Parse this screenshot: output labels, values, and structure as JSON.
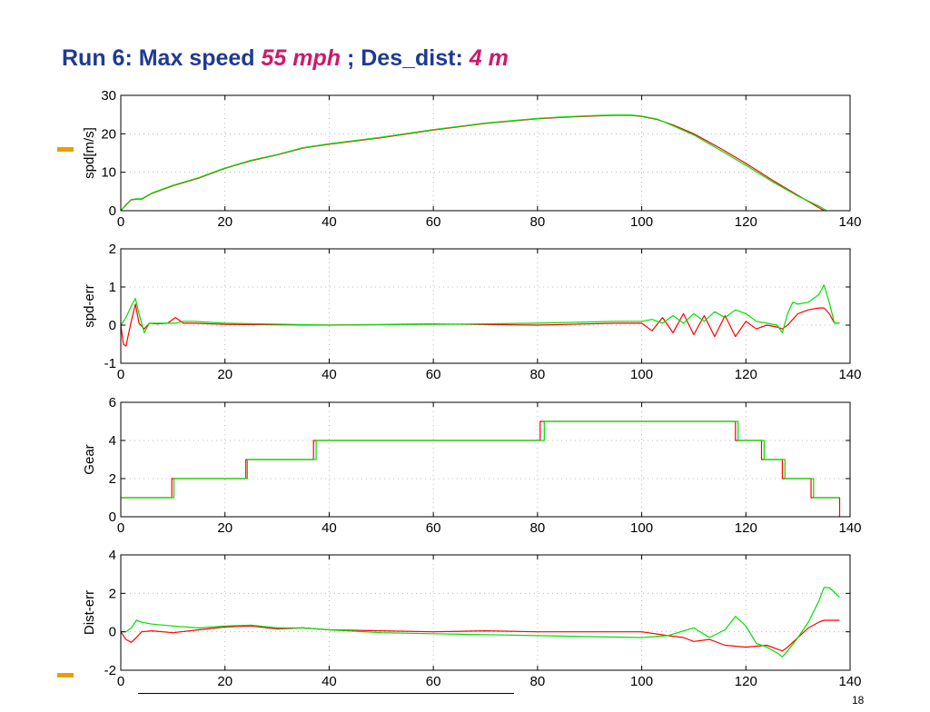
{
  "slide": {
    "title_parts": [
      "Run 6: Max speed ",
      "55 mph",
      " ; Des_dist: ",
      "4 m"
    ],
    "page_number": "18",
    "accent_color": "#e8a000",
    "title_color": "#1f3a93",
    "highlight_color": "#d0186b"
  },
  "chart_data": [
    {
      "type": "line",
      "ylabel": "spd[m/s]",
      "xlim": [
        0,
        140
      ],
      "ylim": [
        0,
        30
      ],
      "xticks": [
        0,
        20,
        40,
        60,
        80,
        100,
        120,
        140
      ],
      "yticks": [
        0,
        10,
        20,
        30
      ],
      "grid": true,
      "series": [
        {
          "color": "#ff0000",
          "x": [
            0,
            1,
            2,
            3,
            4,
            6,
            10,
            15,
            20,
            25,
            30,
            35,
            40,
            50,
            60,
            70,
            80,
            85,
            90,
            95,
            98,
            100,
            103,
            106,
            110,
            115,
            120,
            125,
            130,
            134,
            135
          ],
          "y": [
            0,
            1.5,
            2.8,
            3.0,
            3.0,
            4.5,
            6.5,
            8.5,
            11,
            13,
            14.5,
            16.3,
            17.3,
            19,
            21,
            22.7,
            23.9,
            24.3,
            24.6,
            24.8,
            24.8,
            24.5,
            23.7,
            22.3,
            20,
            16.3,
            12.3,
            8,
            4,
            0.8,
            0
          ]
        },
        {
          "color": "#00e000",
          "x": [
            0,
            1,
            2,
            3,
            4,
            6,
            10,
            15,
            20,
            25,
            30,
            35,
            40,
            50,
            60,
            70,
            80,
            85,
            90,
            95,
            98,
            100,
            103,
            106,
            110,
            115,
            120,
            125,
            130,
            134,
            135.5
          ],
          "y": [
            0,
            1.6,
            2.9,
            3.1,
            3.1,
            4.6,
            6.6,
            8.6,
            11.1,
            13.1,
            14.6,
            16.4,
            17.4,
            19.1,
            21.1,
            22.8,
            24,
            24.4,
            24.7,
            24.9,
            24.9,
            24.6,
            23.8,
            22.1,
            19.7,
            15.8,
            11.8,
            7.6,
            3.8,
            1.2,
            0
          ]
        }
      ]
    },
    {
      "type": "line",
      "ylabel": "spd-err",
      "xlim": [
        0,
        140
      ],
      "ylim": [
        -1,
        2
      ],
      "xticks": [
        0,
        20,
        40,
        60,
        80,
        100,
        120,
        140
      ],
      "yticks": [
        -1,
        0,
        1,
        2
      ],
      "grid": true,
      "series": [
        {
          "color": "#ff0000",
          "x": [
            0,
            0.5,
            1,
            2,
            2.8,
            3.5,
            4.5,
            5.5,
            7,
            9,
            10.5,
            12,
            14,
            20,
            40,
            60,
            80,
            95,
            100,
            102,
            104,
            106,
            108,
            110,
            112,
            114,
            116,
            118,
            120,
            122,
            124,
            126,
            127,
            128,
            129,
            130,
            132,
            134,
            135,
            136,
            137,
            138
          ],
          "y": [
            0,
            -0.5,
            -0.55,
            0.1,
            0.55,
            0.05,
            -0.1,
            0.05,
            0.03,
            0.05,
            0.2,
            0.05,
            0.05,
            0.02,
            0,
            0.03,
            0,
            0.05,
            0.05,
            -0.15,
            0.2,
            -0.2,
            0.3,
            -0.25,
            0.25,
            -0.3,
            0.25,
            -0.3,
            0.1,
            -0.1,
            0,
            -0.05,
            -0.1,
            0,
            0.15,
            0.3,
            0.4,
            0.45,
            0.45,
            0.3,
            0.05,
            0.05
          ]
        },
        {
          "color": "#00e000",
          "x": [
            0,
            0.5,
            1,
            2,
            2.8,
            3.5,
            4.5,
            5.5,
            7,
            9,
            10.5,
            12,
            14,
            20,
            40,
            60,
            80,
            95,
            100,
            102,
            104,
            106,
            108,
            110,
            112,
            114,
            116,
            118,
            120,
            122,
            124,
            126,
            127,
            128,
            129,
            130,
            132,
            134,
            135,
            136,
            137,
            138
          ],
          "y": [
            0,
            0.1,
            0.2,
            0.5,
            0.7,
            0.3,
            -0.2,
            0.05,
            0.05,
            0.05,
            0.05,
            0.1,
            0.1,
            0.05,
            0,
            0.02,
            0.05,
            0.1,
            0.1,
            0.15,
            0.05,
            0.25,
            0.05,
            0.3,
            0.1,
            0.35,
            0.2,
            0.4,
            0.3,
            0.1,
            0.05,
            0,
            -0.2,
            0.3,
            0.6,
            0.55,
            0.6,
            0.8,
            1.05,
            0.6,
            0.05,
            0.05
          ]
        }
      ]
    },
    {
      "type": "line",
      "ylabel": "Gear",
      "xlim": [
        0,
        140
      ],
      "ylim": [
        0,
        6
      ],
      "xticks": [
        0,
        20,
        40,
        60,
        80,
        100,
        120,
        140
      ],
      "yticks": [
        0,
        2,
        4,
        6
      ],
      "grid": true,
      "series": [
        {
          "color": "#ff0000",
          "x": [
            0,
            9.8,
            9.8,
            24,
            24,
            37,
            37,
            80.5,
            80.5,
            118,
            118,
            123,
            123,
            127,
            127,
            132.5,
            132.5,
            138,
            138
          ],
          "y": [
            1,
            1,
            2,
            2,
            3,
            3,
            4,
            4,
            5,
            5,
            4,
            4,
            3,
            3,
            2,
            2,
            1,
            1,
            0
          ]
        },
        {
          "color": "#00e000",
          "x": [
            0,
            10.2,
            10.2,
            24.3,
            24.3,
            37.5,
            37.5,
            81.3,
            81.3,
            118.5,
            118.5,
            123.5,
            123.5,
            127.5,
            127.5,
            133,
            133,
            138
          ],
          "y": [
            1,
            1,
            2,
            2,
            3,
            3,
            4,
            4,
            5,
            5,
            4,
            4,
            3,
            3,
            2,
            2,
            1,
            1
          ]
        }
      ]
    },
    {
      "type": "line",
      "ylabel": "Dist-err",
      "xlim": [
        0,
        140
      ],
      "ylim": [
        -2,
        4
      ],
      "xticks": [
        0,
        20,
        40,
        60,
        80,
        100,
        120,
        140
      ],
      "yticks": [
        -2,
        0,
        2,
        4
      ],
      "grid": true,
      "series": [
        {
          "color": "#ff0000",
          "x": [
            0,
            1,
            2,
            3,
            4,
            6,
            10,
            15,
            20,
            25,
            30,
            35,
            40,
            50,
            60,
            70,
            80,
            90,
            100,
            105,
            108,
            110,
            113,
            116,
            120,
            124,
            126,
            127,
            128,
            130,
            132,
            134,
            135,
            138
          ],
          "y": [
            0,
            -0.4,
            -0.55,
            -0.3,
            0,
            0.05,
            -0.05,
            0.1,
            0.25,
            0.3,
            0.15,
            0.2,
            0.1,
            0.05,
            0,
            0.05,
            0,
            0,
            0,
            -0.2,
            -0.3,
            -0.5,
            -0.4,
            -0.7,
            -0.8,
            -0.7,
            -0.9,
            -1.0,
            -0.8,
            -0.3,
            0.2,
            0.5,
            0.6,
            0.6
          ]
        },
        {
          "color": "#00e000",
          "x": [
            0,
            1,
            2,
            3,
            4,
            6,
            10,
            15,
            20,
            25,
            30,
            35,
            40,
            50,
            60,
            70,
            80,
            90,
            100,
            105,
            110,
            113,
            116,
            118,
            120,
            122,
            124,
            126,
            127,
            128,
            130,
            132,
            134,
            135,
            136,
            138
          ],
          "y": [
            0,
            0,
            0.2,
            0.6,
            0.5,
            0.4,
            0.3,
            0.2,
            0.3,
            0.35,
            0.2,
            0.2,
            0.1,
            -0.05,
            -0.1,
            -0.15,
            -0.2,
            -0.25,
            -0.3,
            -0.2,
            0.2,
            -0.3,
            0.1,
            0.8,
            0.3,
            -0.6,
            -0.8,
            -1.1,
            -1.3,
            -1.0,
            -0.3,
            0.5,
            1.6,
            2.3,
            2.3,
            1.8
          ]
        }
      ]
    }
  ]
}
